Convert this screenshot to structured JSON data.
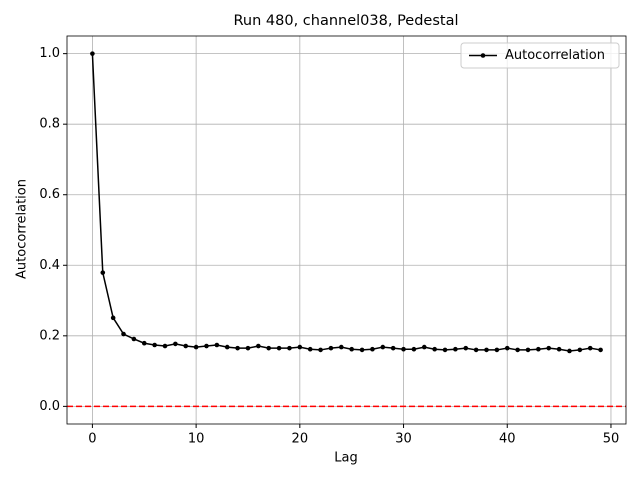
{
  "chart_data": {
    "type": "line",
    "title": "Run 480, channel038, Pedestal",
    "xlabel": "Lag",
    "ylabel": "Autocorrelation",
    "x": [
      0,
      1,
      2,
      3,
      4,
      5,
      6,
      7,
      8,
      9,
      10,
      11,
      12,
      13,
      14,
      15,
      16,
      17,
      18,
      19,
      20,
      21,
      22,
      23,
      24,
      25,
      26,
      27,
      28,
      29,
      30,
      31,
      32,
      33,
      34,
      35,
      36,
      37,
      38,
      39,
      40,
      41,
      42,
      43,
      44,
      45,
      46,
      47,
      48,
      49
    ],
    "series": [
      {
        "name": "Autocorrelation",
        "color": "#000000",
        "values": [
          1.0,
          0.379,
          0.251,
          0.205,
          0.191,
          0.179,
          0.174,
          0.171,
          0.177,
          0.171,
          0.168,
          0.171,
          0.174,
          0.168,
          0.165,
          0.165,
          0.171,
          0.165,
          0.165,
          0.165,
          0.168,
          0.162,
          0.16,
          0.165,
          0.168,
          0.162,
          0.16,
          0.162,
          0.168,
          0.165,
          0.162,
          0.162,
          0.168,
          0.162,
          0.16,
          0.162,
          0.165,
          0.16,
          0.16,
          0.16,
          0.165,
          0.16,
          0.16,
          0.162,
          0.165,
          0.162,
          0.157,
          0.16,
          0.165,
          0.16
        ]
      }
    ],
    "hline": {
      "value": 0,
      "color": "#ff0000"
    },
    "xlim": [
      -2.45,
      51.45
    ],
    "xticks": [
      0,
      10,
      20,
      30,
      40,
      50
    ],
    "ylim": [
      -0.05,
      1.05
    ],
    "yticks": [
      {
        "value": 0,
        "label": "0.0"
      },
      0.2,
      0.4,
      0.6,
      0.8,
      {
        "value": 1,
        "label": "1.0"
      }
    ],
    "grid": true,
    "legend": "upper-right"
  }
}
